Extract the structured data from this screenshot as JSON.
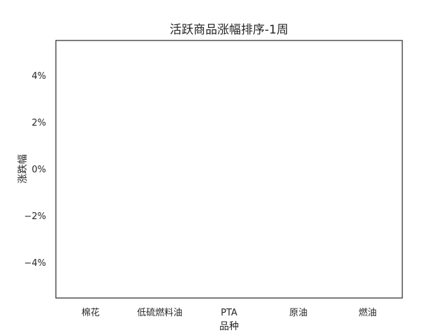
{
  "chart_data": {
    "type": "bar",
    "title": "活跃商品涨幅排序-1周",
    "xlabel": "品种",
    "ylabel": "涨跌幅",
    "categories": [
      "棉花",
      "低硫燃料油",
      "PTA",
      "原油",
      "燃油"
    ],
    "values": [
      0,
      0,
      0,
      0,
      0
    ],
    "ylim": [
      -5.5,
      5.5
    ],
    "yticks": [
      4,
      2,
      0,
      -2,
      -4
    ],
    "ytick_labels": [
      "4%",
      "2%",
      "0%",
      "−2%",
      "−4%"
    ],
    "grid": false,
    "legend": "none"
  }
}
